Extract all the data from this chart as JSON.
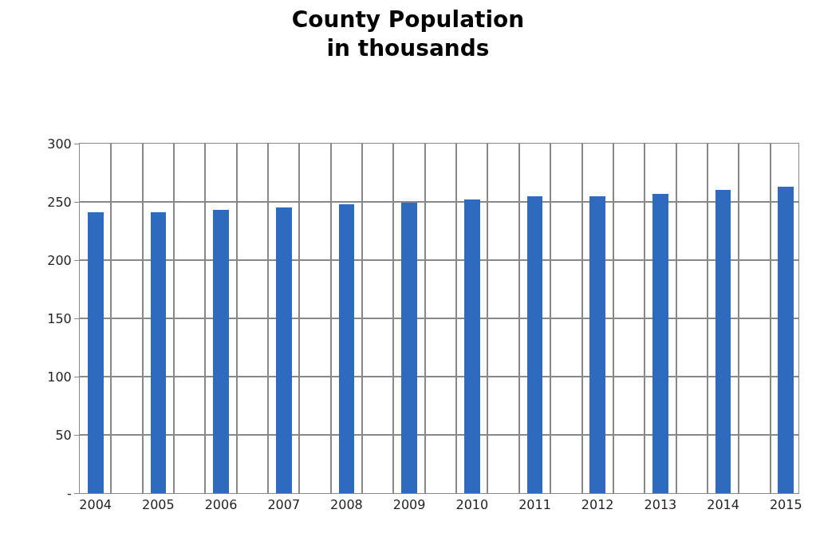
{
  "chart_data": {
    "type": "bar",
    "title": "County Population\nin thousands",
    "categories": [
      "2004",
      "2005",
      "2006",
      "2007",
      "2008",
      "2009",
      "2010",
      "2011",
      "2012",
      "2013",
      "2014",
      "2015"
    ],
    "values": [
      241,
      241,
      243,
      245,
      248,
      249,
      252,
      255,
      255,
      257,
      260,
      263
    ],
    "color": "#2e6bbf",
    "ylim": [
      0,
      300
    ],
    "yticks": [
      {
        "value": 0,
        "label": "-"
      },
      50,
      100,
      150,
      200,
      250,
      300
    ],
    "grid": true
  }
}
